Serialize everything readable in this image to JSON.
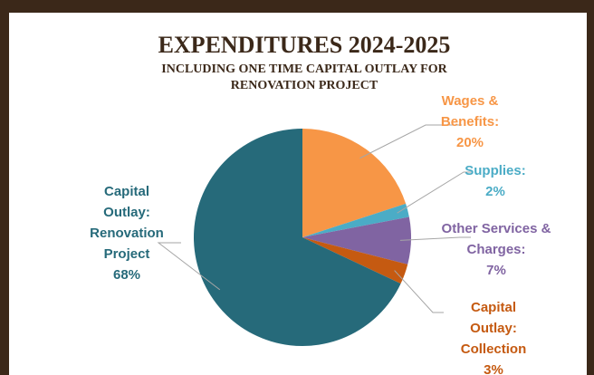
{
  "chart_data": {
    "type": "pie",
    "title": "EXPENDITURES 2024-2025",
    "subtitle": [
      "INCLUDING ONE TIME CAPITAL OUTLAY  FOR",
      "RENOVATION PROJECT"
    ],
    "categories": [
      "Wages & Benefits:",
      "Supplies:",
      "Other Services & Charges:",
      "Capital Outlay: Collection",
      "Capital Outlay: Renovation Project"
    ],
    "values": [
      20,
      2,
      7,
      3,
      68
    ],
    "value_labels": [
      "20%",
      "2%",
      "7%",
      "3%",
      "68%"
    ],
    "colors": [
      "#f79646",
      "#4bacc6",
      "#8064a2",
      "#c55a11",
      "#266a7a"
    ],
    "label_colors": [
      "#f79646",
      "#4bacc6",
      "#8064a2",
      "#c55a11",
      "#266a7a"
    ]
  }
}
